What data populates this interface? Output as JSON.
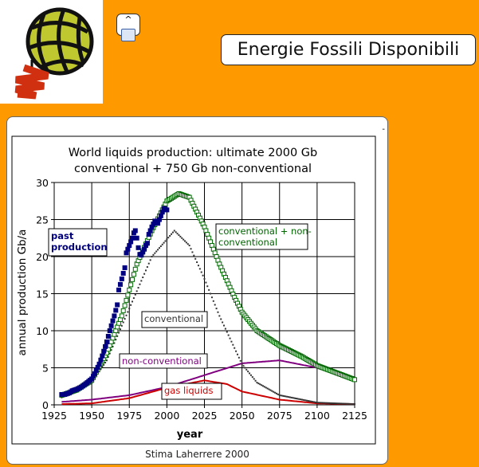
{
  "header": {
    "title": "Energie Fossili Disponibili",
    "toggle_label": "^",
    "toggle_icon": "sitemap-icon"
  },
  "logo": {
    "icon": "globe-balloon-logo"
  },
  "caption": "Stima Laherrere 2000",
  "chart_data": {
    "type": "line",
    "title_line1": "World liquids production: ultimate 2000 Gb",
    "title_line2": "conventional + 750 Gb non-conventional",
    "xlabel": "year",
    "ylabel": "annual production  Gb/a",
    "xlim": [
      1925,
      2125
    ],
    "ylim": [
      0,
      30
    ],
    "xticks": [
      1925,
      1950,
      1975,
      2000,
      2025,
      2050,
      2075,
      2100,
      2125
    ],
    "yticks": [
      0,
      5,
      10,
      15,
      20,
      25,
      30
    ],
    "grid": true,
    "series": [
      {
        "name": "past production",
        "color": "#000080",
        "marker": "filled-square",
        "x": [
          1930,
          1932,
          1935,
          1937,
          1940,
          1943,
          1945,
          1947,
          1950,
          1952,
          1955,
          1957,
          1960,
          1962,
          1965,
          1967,
          1968,
          1970,
          1972,
          1973,
          1975,
          1976,
          1977,
          1978,
          1979,
          1980,
          1981,
          1982,
          1983,
          1984,
          1985,
          1986,
          1987,
          1988,
          1990,
          1992,
          1994,
          1996,
          1998,
          2000
        ],
        "y": [
          1.4,
          1.4,
          1.6,
          1.9,
          2.1,
          2.4,
          2.7,
          3.0,
          3.5,
          4.2,
          5.5,
          6.6,
          8.5,
          10,
          12,
          13.5,
          15.5,
          17,
          18.5,
          20.5,
          21.5,
          22,
          22.5,
          23.2,
          23.5,
          22.5,
          21.2,
          20.3,
          20.2,
          20.6,
          21,
          21.5,
          21.8,
          23,
          24,
          24.8,
          24.5,
          25.5,
          26.5,
          26.3
        ]
      },
      {
        "name": "conventional + non-conventional",
        "color": "#006600",
        "marker": "open-square",
        "x": [
          1930,
          1940,
          1950,
          1960,
          1970,
          1980,
          1990,
          2000,
          2008,
          2015,
          2025,
          2035,
          2045,
          2050,
          2060,
          2075,
          2090,
          2100,
          2125
        ],
        "y": [
          1.3,
          2.0,
          3.3,
          7,
          12,
          19,
          23.5,
          27.5,
          28.5,
          28,
          24,
          19,
          14.5,
          12.5,
          10,
          8,
          6.5,
          5.3,
          3.4
        ]
      },
      {
        "name": "conventional",
        "color": "#333333",
        "marker": "dotted",
        "x": [
          1930,
          1940,
          1950,
          1960,
          1975,
          1990,
          2005,
          2015,
          2025,
          2035,
          2050,
          2060,
          2075,
          2100,
          2125
        ],
        "y": [
          1,
          1.8,
          3,
          6,
          13,
          20,
          23.5,
          21.5,
          17,
          12,
          5.5,
          3,
          1.3,
          0.3,
          0.1
        ]
      },
      {
        "name": "non-conventional",
        "color": "#800080",
        "marker": "line",
        "x": [
          1930,
          1950,
          1975,
          2000,
          2025,
          2050,
          2075,
          2100,
          2125
        ],
        "y": [
          0.4,
          0.7,
          1.3,
          2.4,
          4,
          5.6,
          6,
          5,
          3.2
        ]
      },
      {
        "name": "gas liquids",
        "color": "#cc0000",
        "marker": "line",
        "x": [
          1930,
          1950,
          1975,
          2000,
          2025,
          2040,
          2050,
          2075,
          2100,
          2125
        ],
        "y": [
          0.1,
          0.2,
          0.9,
          2.3,
          3.3,
          2.8,
          1.8,
          0.7,
          0.2,
          0.1
        ]
      }
    ],
    "annotations": [
      {
        "text_lines": [
          "past",
          "production"
        ],
        "series": "past production"
      },
      {
        "text_lines": [
          "conventional + non-",
          "conventional"
        ],
        "series": "conventional + non-conventional"
      },
      {
        "text_lines": [
          "conventional"
        ],
        "series": "conventional"
      },
      {
        "text_lines": [
          "non-conventional"
        ],
        "series": "non-conventional"
      },
      {
        "text_lines": [
          "gas liquids"
        ],
        "series": "gas liquids"
      }
    ]
  }
}
